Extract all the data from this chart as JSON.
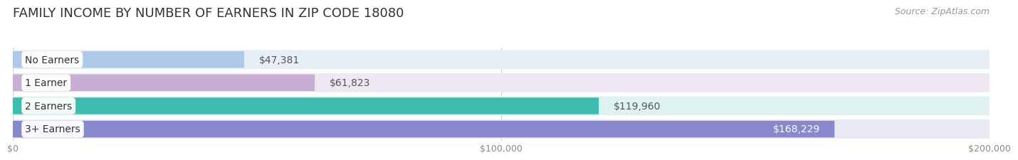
{
  "title": "FAMILY INCOME BY NUMBER OF EARNERS IN ZIP CODE 18080",
  "source": "Source: ZipAtlas.com",
  "categories": [
    "No Earners",
    "1 Earner",
    "2 Earners",
    "3+ Earners"
  ],
  "values": [
    47381,
    61823,
    119960,
    168229
  ],
  "bar_colors": [
    "#adc8e8",
    "#c8aed4",
    "#3dbdad",
    "#8888cc"
  ],
  "bar_bg_colors": [
    "#e8eef5",
    "#ede8f2",
    "#e0f2f0",
    "#eaeaf7"
  ],
  "label_colors": [
    "#444444",
    "#444444",
    "#444444",
    "#ffffff"
  ],
  "value_labels": [
    "$47,381",
    "$61,823",
    "$119,960",
    "$168,229"
  ],
  "value_label_inside": [
    false,
    false,
    false,
    true
  ],
  "xlim": [
    0,
    200000
  ],
  "xticks": [
    0,
    100000,
    200000
  ],
  "xtick_labels": [
    "$0",
    "$100,000",
    "$200,000"
  ],
  "background_color": "#ffffff",
  "title_fontsize": 13,
  "source_fontsize": 9,
  "bar_label_fontsize": 10,
  "value_label_fontsize": 10
}
